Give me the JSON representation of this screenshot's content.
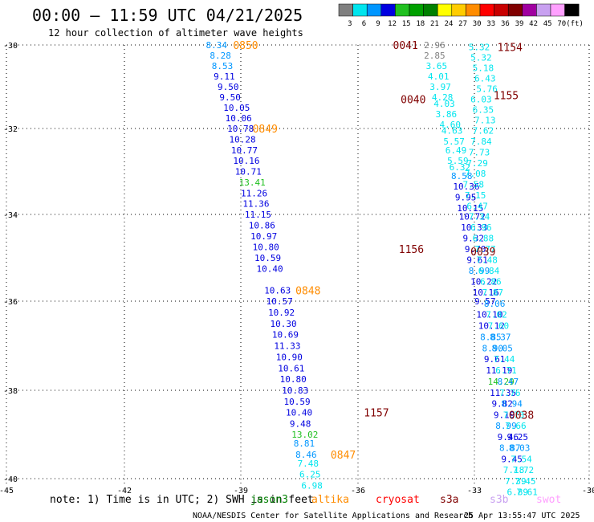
{
  "header": {
    "title": "00:00 — 11:59 UTC 04/21/2025",
    "subtitle": "12 hour collection of altimeter wave heights"
  },
  "colorbar": {
    "unit": "(ft)",
    "bins": [
      {
        "label": "3",
        "color": "#808080"
      },
      {
        "label": "6",
        "color": "#00e5ee"
      },
      {
        "label": "9",
        "color": "#0096ff"
      },
      {
        "label": "12",
        "color": "#0000e0"
      },
      {
        "label": "15",
        "color": "#20c020"
      },
      {
        "label": "18",
        "color": "#00a000"
      },
      {
        "label": "21",
        "color": "#008000"
      },
      {
        "label": "24",
        "color": "#ffff00"
      },
      {
        "label": "27",
        "color": "#ffcc00"
      },
      {
        "label": "30",
        "color": "#ff8c00"
      },
      {
        "label": "33",
        "color": "#ff0000"
      },
      {
        "label": "36",
        "color": "#c80000"
      },
      {
        "label": "39",
        "color": "#800000"
      },
      {
        "label": "42",
        "color": "#a000a0"
      },
      {
        "label": "45",
        "color": "#c8a0f0"
      },
      {
        "label": "70",
        "color": "#ffa0ff"
      },
      {
        "label": "",
        "color": "#000000"
      }
    ]
  },
  "chart_data": {
    "type": "scatter",
    "xlim": [
      -45,
      -30
    ],
    "ylim": [
      -40,
      -30
    ],
    "x_ticks": [
      {
        "v": -45,
        "label": "-45"
      },
      {
        "v": -42,
        "label": "-42"
      },
      {
        "v": -39,
        "label": "-39"
      },
      {
        "v": -36,
        "label": "-36"
      },
      {
        "v": -33,
        "label": "-33"
      },
      {
        "v": -30,
        "label": "-30"
      }
    ],
    "y_ticks": [
      {
        "v": -30,
        "label": "-30"
      },
      {
        "v": -32,
        "label": "-32"
      },
      {
        "v": -34,
        "label": "-34"
      },
      {
        "v": -36,
        "label": "-36"
      },
      {
        "v": -38,
        "label": "-38"
      },
      {
        "v": -40,
        "label": "-40"
      }
    ],
    "gridlines": true,
    "track_w": [
      {
        "x": -39.9,
        "y": -30.0,
        "t": "8.34",
        "c": "#0096ff"
      },
      {
        "x": -39.8,
        "y": -30.25,
        "t": "8.28",
        "c": "#0096ff"
      },
      {
        "x": -39.75,
        "y": -30.5,
        "t": "8.53",
        "c": "#0096ff"
      },
      {
        "x": -39.7,
        "y": -30.75,
        "t": "9.11",
        "c": "#0000e0"
      },
      {
        "x": -39.6,
        "y": -31.0,
        "t": "9.50",
        "c": "#0000e0"
      },
      {
        "x": -39.55,
        "y": -31.25,
        "t": "9.50",
        "c": "#0000e0"
      },
      {
        "x": -39.45,
        "y": -31.5,
        "t": "10.05",
        "c": "#0000e0"
      },
      {
        "x": -39.4,
        "y": -31.75,
        "t": "10.06",
        "c": "#0000e0"
      },
      {
        "x": -39.35,
        "y": -32.0,
        "t": "10.78",
        "c": "#0000e0"
      },
      {
        "x": -39.3,
        "y": -32.25,
        "t": "10.28",
        "c": "#0000e0"
      },
      {
        "x": -39.25,
        "y": -32.5,
        "t": "10.77",
        "c": "#0000e0"
      },
      {
        "x": -39.2,
        "y": -32.75,
        "t": "10.16",
        "c": "#0000e0"
      },
      {
        "x": -39.15,
        "y": -33.0,
        "t": "10.71",
        "c": "#0000e0"
      },
      {
        "x": -39.05,
        "y": -33.25,
        "t": "13.41",
        "c": "#20c020"
      },
      {
        "x": -39.0,
        "y": -33.5,
        "t": "11.26",
        "c": "#0000e0"
      },
      {
        "x": -38.95,
        "y": -33.75,
        "t": "11.36",
        "c": "#0000e0"
      },
      {
        "x": -38.9,
        "y": -34.0,
        "t": "11.15",
        "c": "#0000e0"
      },
      {
        "x": -38.8,
        "y": -34.25,
        "t": "10.86",
        "c": "#0000e0"
      },
      {
        "x": -38.75,
        "y": -34.5,
        "t": "10.97",
        "c": "#0000e0"
      },
      {
        "x": -38.7,
        "y": -34.75,
        "t": "10.80",
        "c": "#0000e0"
      },
      {
        "x": -38.65,
        "y": -35.0,
        "t": "10.59",
        "c": "#0000e0"
      },
      {
        "x": -38.6,
        "y": -35.25,
        "t": "10.40",
        "c": "#0000e0"
      },
      {
        "x": -38.4,
        "y": -35.75,
        "t": "10.63",
        "c": "#0000e0"
      },
      {
        "x": -38.35,
        "y": -36.0,
        "t": "10.57",
        "c": "#0000e0"
      },
      {
        "x": -38.3,
        "y": -36.25,
        "t": "10.92",
        "c": "#0000e0"
      },
      {
        "x": -38.25,
        "y": -36.5,
        "t": "10.30",
        "c": "#0000e0"
      },
      {
        "x": -38.2,
        "y": -36.75,
        "t": "10.69",
        "c": "#0000e0"
      },
      {
        "x": -38.15,
        "y": -37.0,
        "t": "11.33",
        "c": "#0000e0"
      },
      {
        "x": -38.1,
        "y": -37.25,
        "t": "10.90",
        "c": "#0000e0"
      },
      {
        "x": -38.05,
        "y": -37.5,
        "t": "10.61",
        "c": "#0000e0"
      },
      {
        "x": -38.0,
        "y": -37.75,
        "t": "10.80",
        "c": "#0000e0"
      },
      {
        "x": -37.95,
        "y": -38.0,
        "t": "10.83",
        "c": "#0000e0"
      },
      {
        "x": -37.9,
        "y": -38.25,
        "t": "10.59",
        "c": "#0000e0"
      },
      {
        "x": -37.85,
        "y": -38.5,
        "t": "10.40",
        "c": "#0000e0"
      },
      {
        "x": -37.75,
        "y": -38.75,
        "t": "9.48",
        "c": "#0000e0"
      },
      {
        "x": -37.7,
        "y": -39.0,
        "t": "13.02",
        "c": "#20c020"
      },
      {
        "x": -37.65,
        "y": -39.2,
        "t": "8.81",
        "c": "#0096ff"
      },
      {
        "x": -37.6,
        "y": -39.45,
        "t": "8.46",
        "c": "#0096ff"
      },
      {
        "x": -37.55,
        "y": -39.65,
        "t": "7.48",
        "c": "#00e5ee"
      },
      {
        "x": -37.5,
        "y": -39.9,
        "t": "6.25",
        "c": "#00e5ee"
      },
      {
        "x": -37.45,
        "y": -40.15,
        "t": "6.98",
        "c": "#00e5ee"
      }
    ],
    "track_m": [
      {
        "x": -34.3,
        "y": -30.0,
        "t": "2.96",
        "c": "#808080"
      },
      {
        "x": -34.3,
        "y": -30.25,
        "t": "2.85",
        "c": "#808080"
      },
      {
        "x": -34.25,
        "y": -30.5,
        "t": "3.65",
        "c": "#00e5ee"
      },
      {
        "x": -34.2,
        "y": -30.75,
        "t": "4.01",
        "c": "#00e5ee"
      },
      {
        "x": -34.15,
        "y": -31.0,
        "t": "3.97",
        "c": "#00e5ee"
      },
      {
        "x": -34.1,
        "y": -31.25,
        "t": "4.28",
        "c": "#00e5ee"
      },
      {
        "x": -34.05,
        "y": -31.4,
        "t": "4.03",
        "c": "#00e5ee"
      },
      {
        "x": -34.0,
        "y": -31.65,
        "t": "3.86",
        "c": "#00e5ee"
      },
      {
        "x": -33.9,
        "y": -31.9,
        "t": "4.60",
        "c": "#00e5ee"
      },
      {
        "x": -33.85,
        "y": -32.05,
        "t": "4.63",
        "c": "#00e5ee"
      },
      {
        "x": -33.8,
        "y": -32.3,
        "t": "5.57",
        "c": "#00e5ee"
      },
      {
        "x": -33.75,
        "y": -32.5,
        "t": "6.49",
        "c": "#00e5ee"
      },
      {
        "x": -33.7,
        "y": -32.75,
        "t": "5.59",
        "c": "#00e5ee"
      },
      {
        "x": -33.65,
        "y": -32.9,
        "t": "6.32",
        "c": "#00e5ee"
      },
      {
        "x": -33.6,
        "y": -33.1,
        "t": "8.58",
        "c": "#0096ff"
      },
      {
        "x": -33.55,
        "y": -33.35,
        "t": "10.36",
        "c": "#0000e0"
      },
      {
        "x": -33.5,
        "y": -33.6,
        "t": "9.95",
        "c": "#0000e0"
      },
      {
        "x": -33.45,
        "y": -33.85,
        "t": "10.15",
        "c": "#0000e0"
      },
      {
        "x": -33.4,
        "y": -34.05,
        "t": "10.72",
        "c": "#0000e0"
      },
      {
        "x": -33.35,
        "y": -34.3,
        "t": "10.33",
        "c": "#0000e0"
      },
      {
        "x": -33.3,
        "y": -34.55,
        "t": "9.32",
        "c": "#0000e0"
      },
      {
        "x": -33.25,
        "y": -34.8,
        "t": "9.70",
        "c": "#0000e0"
      },
      {
        "x": -33.2,
        "y": -35.05,
        "t": "9.61",
        "c": "#0000e0"
      },
      {
        "x": -33.15,
        "y": -35.3,
        "t": "8.99",
        "c": "#0096ff"
      },
      {
        "x": -33.1,
        "y": -35.55,
        "t": "10.22",
        "c": "#0000e0"
      },
      {
        "x": -33.05,
        "y": -35.8,
        "t": "10.16",
        "c": "#0000e0"
      },
      {
        "x": -33.0,
        "y": -36.0,
        "t": "9.57",
        "c": "#0000e0"
      },
      {
        "x": -32.95,
        "y": -36.3,
        "t": "10.10",
        "c": "#0000e0"
      },
      {
        "x": -32.9,
        "y": -36.55,
        "t": "10.12",
        "c": "#0000e0"
      },
      {
        "x": -32.85,
        "y": -36.8,
        "t": "8.85",
        "c": "#0096ff"
      },
      {
        "x": -32.8,
        "y": -37.05,
        "t": "8.90",
        "c": "#0096ff"
      },
      {
        "x": -32.75,
        "y": -37.3,
        "t": "9.61",
        "c": "#0000e0"
      },
      {
        "x": -32.7,
        "y": -37.55,
        "t": "11.19",
        "c": "#0000e0"
      },
      {
        "x": -32.65,
        "y": -37.8,
        "t": "14.29",
        "c": "#20c020"
      },
      {
        "x": -32.6,
        "y": -38.05,
        "t": "11.35",
        "c": "#0000e0"
      },
      {
        "x": -32.55,
        "y": -38.3,
        "t": "9.82",
        "c": "#0000e0"
      },
      {
        "x": -32.5,
        "y": -38.55,
        "t": "9.19",
        "c": "#0000e0"
      },
      {
        "x": -32.45,
        "y": -38.8,
        "t": "8.99",
        "c": "#0096ff"
      },
      {
        "x": -32.4,
        "y": -39.05,
        "t": "9.46",
        "c": "#0000e0"
      },
      {
        "x": -32.35,
        "y": -39.3,
        "t": "8.87",
        "c": "#0096ff"
      },
      {
        "x": -32.3,
        "y": -39.55,
        "t": "9.45",
        "c": "#0000e0"
      },
      {
        "x": -32.25,
        "y": -39.8,
        "t": "7.18",
        "c": "#00e5ee"
      },
      {
        "x": -32.2,
        "y": -40.05,
        "t": "7.39",
        "c": "#00e5ee"
      },
      {
        "x": -32.15,
        "y": -40.3,
        "t": "6.89",
        "c": "#00e5ee"
      }
    ],
    "track_e": [
      {
        "x": -33.15,
        "y": -30.05,
        "t": "5.32",
        "c": "#00e5ee"
      },
      {
        "x": -33.1,
        "y": -30.3,
        "t": "5.32",
        "c": "#00e5ee"
      },
      {
        "x": -33.05,
        "y": -30.55,
        "t": "5.18",
        "c": "#00e5ee"
      },
      {
        "x": -33.0,
        "y": -30.8,
        "t": "6.43",
        "c": "#00e5ee"
      },
      {
        "x": -32.95,
        "y": -31.05,
        "t": "5.76",
        "c": "#00e5ee"
      },
      {
        "x": -33.1,
        "y": -31.3,
        "t": "6.03",
        "c": "#00e5ee"
      },
      {
        "x": -33.05,
        "y": -31.55,
        "t": "6.35",
        "c": "#00e5ee"
      },
      {
        "x": -33.0,
        "y": -31.8,
        "t": "7.13",
        "c": "#00e5ee"
      },
      {
        "x": -33.05,
        "y": -32.05,
        "t": "7.62",
        "c": "#00e5ee"
      },
      {
        "x": -33.1,
        "y": -32.3,
        "t": "7.84",
        "c": "#00e5ee"
      },
      {
        "x": -33.15,
        "y": -32.55,
        "t": "7.73",
        "c": "#00e5ee"
      },
      {
        "x": -33.2,
        "y": -32.8,
        "t": "7.29",
        "c": "#00e5ee"
      },
      {
        "x": -33.25,
        "y": -33.05,
        "t": "7.08",
        "c": "#00e5ee"
      },
      {
        "x": -33.3,
        "y": -33.3,
        "t": "7.58",
        "c": "#00e5ee"
      },
      {
        "x": -33.25,
        "y": -33.55,
        "t": "7.15",
        "c": "#00e5ee"
      },
      {
        "x": -33.2,
        "y": -33.8,
        "t": "6.47",
        "c": "#00e5ee"
      },
      {
        "x": -33.15,
        "y": -34.05,
        "t": "7.34",
        "c": "#00e5ee"
      },
      {
        "x": -33.1,
        "y": -34.3,
        "t": "6.96",
        "c": "#00e5ee"
      },
      {
        "x": -33.05,
        "y": -34.55,
        "t": "6.88",
        "c": "#00e5ee"
      },
      {
        "x": -33.0,
        "y": -34.8,
        "t": "7.77",
        "c": "#00e5ee"
      },
      {
        "x": -32.95,
        "y": -35.05,
        "t": "7.48",
        "c": "#00e5ee"
      },
      {
        "x": -32.9,
        "y": -35.3,
        "t": "6.84",
        "c": "#00e5ee"
      },
      {
        "x": -32.85,
        "y": -35.55,
        "t": "6.86",
        "c": "#00e5ee"
      },
      {
        "x": -32.8,
        "y": -35.8,
        "t": "7.87",
        "c": "#00e5ee"
      },
      {
        "x": -32.75,
        "y": -36.05,
        "t": "8.06",
        "c": "#0096ff"
      },
      {
        "x": -32.7,
        "y": -36.3,
        "t": "7.02",
        "c": "#00e5ee"
      },
      {
        "x": -32.65,
        "y": -36.55,
        "t": "7.60",
        "c": "#00e5ee"
      },
      {
        "x": -32.6,
        "y": -36.8,
        "t": "8.37",
        "c": "#0096ff"
      },
      {
        "x": -32.55,
        "y": -37.05,
        "t": "8.05",
        "c": "#0096ff"
      },
      {
        "x": -32.5,
        "y": -37.3,
        "t": "7.44",
        "c": "#00e5ee"
      },
      {
        "x": -32.45,
        "y": -37.55,
        "t": "6.71",
        "c": "#00e5ee"
      },
      {
        "x": -32.4,
        "y": -37.8,
        "t": "8.47",
        "c": "#0096ff"
      },
      {
        "x": -32.35,
        "y": -38.05,
        "t": "7.76",
        "c": "#00e5ee"
      },
      {
        "x": -32.3,
        "y": -38.3,
        "t": "8.94",
        "c": "#0096ff"
      },
      {
        "x": -32.25,
        "y": -38.55,
        "t": "7.73",
        "c": "#00e5ee"
      },
      {
        "x": -32.2,
        "y": -38.8,
        "t": "7.66",
        "c": "#00e5ee"
      },
      {
        "x": -32.15,
        "y": -39.05,
        "t": "9.25",
        "c": "#0000e0"
      },
      {
        "x": -32.1,
        "y": -39.3,
        "t": "8.03",
        "c": "#0096ff"
      },
      {
        "x": -32.05,
        "y": -39.55,
        "t": "7.54",
        "c": "#00e5ee"
      },
      {
        "x": -32.0,
        "y": -39.8,
        "t": "7.72",
        "c": "#00e5ee"
      },
      {
        "x": -31.95,
        "y": -40.05,
        "t": "7.45",
        "c": "#00e5ee"
      },
      {
        "x": -31.9,
        "y": -40.3,
        "t": "7.61",
        "c": "#00e5ee"
      }
    ],
    "time_labels": [
      {
        "x": -39.2,
        "y": -30.0,
        "t": "0850",
        "c": "#ff8c00"
      },
      {
        "x": -38.7,
        "y": -32.0,
        "t": "0849",
        "c": "#ff8c00"
      },
      {
        "x": -37.6,
        "y": -35.75,
        "t": "0848",
        "c": "#ff8c00"
      },
      {
        "x": -36.7,
        "y": -39.45,
        "t": "0847",
        "c": "#ff8c00"
      },
      {
        "x": -35.1,
        "y": -30.0,
        "t": "0041",
        "c": "#800000"
      },
      {
        "x": -34.9,
        "y": -31.3,
        "t": "0040",
        "c": "#800000"
      },
      {
        "x": -34.95,
        "y": -34.8,
        "t": "1156",
        "c": "#800000"
      },
      {
        "x": -33.1,
        "y": -34.85,
        "t": "0039",
        "c": "#800000"
      },
      {
        "x": -35.85,
        "y": -38.5,
        "t": "1157",
        "c": "#800000"
      },
      {
        "x": -32.1,
        "y": -38.55,
        "t": "0038",
        "c": "#800000"
      },
      {
        "x": -32.4,
        "y": -30.05,
        "t": "1154",
        "c": "#800000"
      },
      {
        "x": -32.5,
        "y": -31.2,
        "t": "1155",
        "c": "#800000"
      }
    ]
  },
  "footer": {
    "note": "note:  1) Time is in UTC; 2) SWH is in feet",
    "satellites": [
      {
        "name": "jason3",
        "color": "#008000"
      },
      {
        "name": "altika",
        "color": "#ff8c00"
      },
      {
        "name": "cryosat",
        "color": "#ff0000"
      },
      {
        "name": "s3a",
        "color": "#800000"
      },
      {
        "name": "s3b",
        "color": "#c8a0f0"
      },
      {
        "name": "swot",
        "color": "#ffa0ff"
      }
    ],
    "credit": "NOAA/NESDIS Center for Satellite Applications and Research",
    "timestamp": "25 Apr 13:55:47 UTC 2025"
  }
}
